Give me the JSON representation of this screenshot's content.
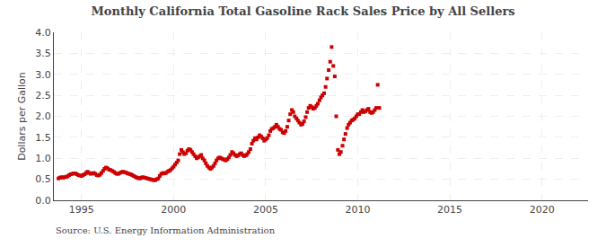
{
  "chart_data": {
    "type": "scatter",
    "title": "Monthly California Total Gasoline Rack Sales Price by All Sellers",
    "ylabel": "Dollars per Gallon",
    "annotations": [
      "Source: U.S. Energy Information Administration"
    ],
    "color": "#cc0000",
    "marker": "square",
    "grid": true,
    "xlim": [
      1993.5,
      2022.5
    ],
    "ylim": [
      0.0,
      4.0
    ],
    "xticks": [
      1995,
      2000,
      2005,
      2010,
      2015,
      2020
    ],
    "yticks": [
      {
        "value": 0.0,
        "label": "0.0"
      },
      0.5,
      {
        "value": 1.0,
        "label": "1.0"
      },
      1.5,
      {
        "value": 2.0,
        "label": "2.0"
      },
      2.5,
      {
        "value": 3.0,
        "label": "3.0"
      },
      3.5,
      {
        "value": 4.0,
        "label": "4.0"
      }
    ],
    "x": [
      1993.75,
      1993.83,
      1993.92,
      1994.0,
      1994.08,
      1994.17,
      1994.25,
      1994.33,
      1994.42,
      1994.5,
      1994.58,
      1994.67,
      1994.75,
      1994.83,
      1994.92,
      1995.0,
      1995.08,
      1995.17,
      1995.25,
      1995.33,
      1995.42,
      1995.5,
      1995.58,
      1995.67,
      1995.75,
      1995.83,
      1995.92,
      1996.0,
      1996.08,
      1996.17,
      1996.25,
      1996.33,
      1996.42,
      1996.5,
      1996.58,
      1996.67,
      1996.75,
      1996.83,
      1996.92,
      1997.0,
      1997.08,
      1997.17,
      1997.25,
      1997.33,
      1997.42,
      1997.5,
      1997.58,
      1997.67,
      1997.75,
      1997.83,
      1997.92,
      1998.0,
      1998.08,
      1998.17,
      1998.25,
      1998.33,
      1998.42,
      1998.5,
      1998.58,
      1998.67,
      1998.75,
      1998.83,
      1998.92,
      1999.0,
      1999.08,
      1999.17,
      1999.25,
      1999.33,
      1999.42,
      1999.5,
      1999.58,
      1999.67,
      1999.75,
      1999.83,
      1999.92,
      2000.0,
      2000.08,
      2000.17,
      2000.25,
      2000.33,
      2000.42,
      2000.5,
      2000.58,
      2000.67,
      2000.75,
      2000.83,
      2000.92,
      2001.0,
      2001.08,
      2001.17,
      2001.25,
      2001.33,
      2001.42,
      2001.5,
      2001.58,
      2001.67,
      2001.75,
      2001.83,
      2001.92,
      2002.0,
      2002.08,
      2002.17,
      2002.25,
      2002.33,
      2002.42,
      2002.5,
      2002.58,
      2002.67,
      2002.75,
      2002.83,
      2002.92,
      2003.0,
      2003.08,
      2003.17,
      2003.25,
      2003.33,
      2003.42,
      2003.5,
      2003.58,
      2003.67,
      2003.75,
      2003.83,
      2003.92,
      2004.0,
      2004.08,
      2004.17,
      2004.25,
      2004.33,
      2004.42,
      2004.5,
      2004.58,
      2004.67,
      2004.75,
      2004.83,
      2004.92,
      2005.0,
      2005.08,
      2005.17,
      2005.25,
      2005.33,
      2005.42,
      2005.5,
      2005.58,
      2005.67,
      2005.75,
      2005.83,
      2005.92,
      2006.0,
      2006.08,
      2006.17,
      2006.25,
      2006.33,
      2006.42,
      2006.5,
      2006.58,
      2006.67,
      2006.75,
      2006.83,
      2006.92,
      2007.0,
      2007.08,
      2007.17,
      2007.25,
      2007.33,
      2007.42,
      2007.5,
      2007.58,
      2007.67,
      2007.75,
      2007.83,
      2007.92,
      2008.0,
      2008.08,
      2008.17,
      2008.25,
      2008.33,
      2008.42,
      2008.5,
      2008.58,
      2008.67,
      2008.75,
      2008.83,
      2008.92,
      2009.0,
      2009.08,
      2009.17,
      2009.25,
      2009.33,
      2009.42,
      2009.5,
      2009.58,
      2009.67,
      2009.75,
      2009.83,
      2009.92,
      2010.0,
      2010.08,
      2010.17,
      2010.25,
      2010.33,
      2010.42,
      2010.5,
      2010.58,
      2010.67,
      2010.75,
      2010.83,
      2010.92,
      2011.0,
      2011.08,
      2011.17
    ],
    "values": [
      0.52,
      0.54,
      0.55,
      0.54,
      0.55,
      0.56,
      0.57,
      0.6,
      0.62,
      0.63,
      0.64,
      0.64,
      0.62,
      0.6,
      0.59,
      0.58,
      0.6,
      0.62,
      0.65,
      0.68,
      0.65,
      0.63,
      0.64,
      0.65,
      0.63,
      0.6,
      0.59,
      0.61,
      0.65,
      0.7,
      0.75,
      0.78,
      0.76,
      0.73,
      0.72,
      0.7,
      0.68,
      0.65,
      0.63,
      0.63,
      0.65,
      0.67,
      0.68,
      0.67,
      0.66,
      0.64,
      0.63,
      0.62,
      0.6,
      0.58,
      0.56,
      0.54,
      0.53,
      0.52,
      0.54,
      0.55,
      0.54,
      0.53,
      0.52,
      0.51,
      0.5,
      0.49,
      0.48,
      0.48,
      0.5,
      0.52,
      0.58,
      0.63,
      0.65,
      0.64,
      0.65,
      0.68,
      0.7,
      0.72,
      0.76,
      0.8,
      0.85,
      0.9,
      0.95,
      1.1,
      1.2,
      1.15,
      1.1,
      1.12,
      1.18,
      1.22,
      1.2,
      1.15,
      1.1,
      1.05,
      1.0,
      1.02,
      1.05,
      1.08,
      1.0,
      0.95,
      0.88,
      0.82,
      0.78,
      0.75,
      0.78,
      0.82,
      0.88,
      0.95,
      1.0,
      1.02,
      1.0,
      0.98,
      0.97,
      0.95,
      0.98,
      1.02,
      1.08,
      1.15,
      1.12,
      1.08,
      1.05,
      1.07,
      1.1,
      1.12,
      1.08,
      1.05,
      1.07,
      1.1,
      1.15,
      1.22,
      1.35,
      1.42,
      1.48,
      1.45,
      1.5,
      1.55,
      1.52,
      1.48,
      1.42,
      1.45,
      1.48,
      1.55,
      1.65,
      1.7,
      1.72,
      1.75,
      1.8,
      1.75,
      1.7,
      1.68,
      1.62,
      1.6,
      1.65,
      1.75,
      1.9,
      2.05,
      2.15,
      2.1,
      2.0,
      1.95,
      1.9,
      1.85,
      1.8,
      1.82,
      1.88,
      1.98,
      2.1,
      2.2,
      2.25,
      2.22,
      2.18,
      2.2,
      2.25,
      2.3,
      2.38,
      2.45,
      2.5,
      2.55,
      2.7,
      2.9,
      3.1,
      3.3,
      3.65,
      3.2,
      2.95,
      2.0,
      1.2,
      1.1,
      1.15,
      1.3,
      1.45,
      1.58,
      1.72,
      1.8,
      1.85,
      1.9,
      1.92,
      1.95,
      2.0,
      2.05,
      2.05,
      2.1,
      2.15,
      2.1,
      2.12,
      2.15,
      2.18,
      2.1,
      2.08,
      2.1,
      2.15,
      2.2,
      2.75,
      2.2
    ]
  }
}
